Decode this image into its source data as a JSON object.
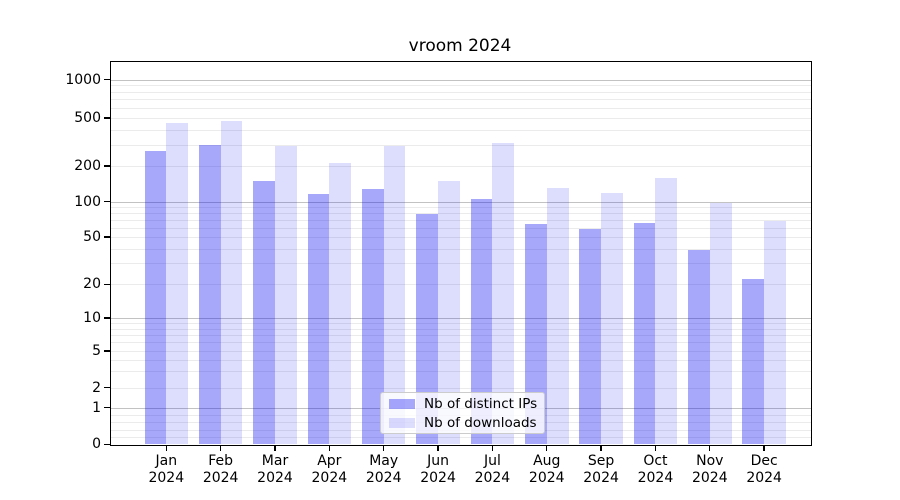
{
  "title": "vroom 2024",
  "legend": {
    "items": [
      {
        "label": "Nb of distinct IPs",
        "color": "rgba(0,0,244,0.34)"
      },
      {
        "label": "Nb of downloads",
        "color": "rgba(0,0,244,0.135)"
      }
    ]
  },
  "y_axis": {
    "tick_labels": [
      "1000",
      "500",
      "200",
      "100",
      "50",
      "20",
      "10",
      "5",
      "2",
      "1",
      "0"
    ]
  },
  "x_axis": {
    "months": [
      "Jan",
      "Feb",
      "Mar",
      "Apr",
      "May",
      "Jun",
      "Jul",
      "Aug",
      "Sep",
      "Oct",
      "Nov",
      "Dec"
    ],
    "year": "2024"
  },
  "chart_data": {
    "type": "bar",
    "title": "vroom 2024",
    "categories": [
      "Jan 2024",
      "Feb 2024",
      "Mar 2024",
      "Apr 2024",
      "May 2024",
      "Jun 2024",
      "Jul 2024",
      "Aug 2024",
      "Sep 2024",
      "Oct 2024",
      "Nov 2024",
      "Dec 2024"
    ],
    "series": [
      {
        "name": "Nb of distinct IPs",
        "values": [
          265,
          300,
          150,
          115,
          128,
          78,
          105,
          65,
          59,
          66,
          39,
          22
        ]
      },
      {
        "name": "Nb of downloads",
        "values": [
          455,
          470,
          292,
          210,
          292,
          150,
          308,
          129,
          118,
          157,
          98,
          68
        ]
      }
    ],
    "yscale": "symlog",
    "ylim": [
      0,
      1400
    ],
    "y_ticks": [
      1000,
      500,
      200,
      100,
      50,
      20,
      10,
      5,
      2,
      1,
      0
    ],
    "grid": true,
    "legend_position": "lower center",
    "colors": {
      "distinct_ips": "rgba(0,0,244,0.34)",
      "downloads": "rgba(0,0,244,0.135)"
    }
  }
}
